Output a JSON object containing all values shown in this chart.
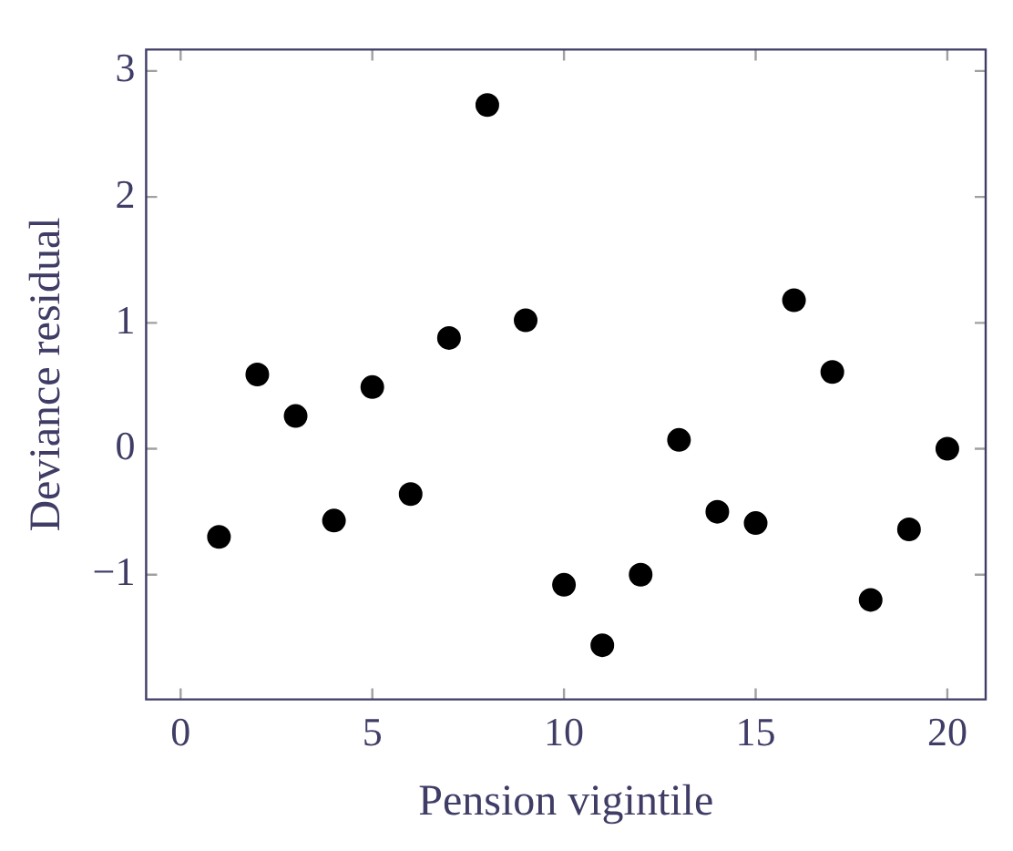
{
  "chart_data": {
    "type": "scatter",
    "xlabel": "Pension vigintile",
    "ylabel": "Deviance residual",
    "series": [
      {
        "color": "#000000",
        "x": [
          1,
          2,
          3,
          4,
          5,
          6,
          7,
          8,
          9,
          10,
          11,
          12,
          13,
          14,
          15,
          16,
          17,
          18,
          19,
          20
        ],
        "values": [
          -0.7,
          0.59,
          0.26,
          -0.57,
          0.49,
          -0.36,
          0.88,
          2.73,
          1.02,
          -1.08,
          -1.56,
          -1.0,
          0.07,
          -0.5,
          -0.59,
          1.18,
          0.61,
          -1.2,
          -0.64,
          0.0
        ]
      }
    ],
    "xlim": [
      -0.9,
      21
    ],
    "ylim": [
      -1.99,
      3.17
    ],
    "xticks": [
      0,
      5,
      10,
      15,
      20
    ],
    "yticks": [
      -1,
      0,
      1,
      2,
      3
    ],
    "marker": "circle",
    "grid": false,
    "legend": false
  }
}
